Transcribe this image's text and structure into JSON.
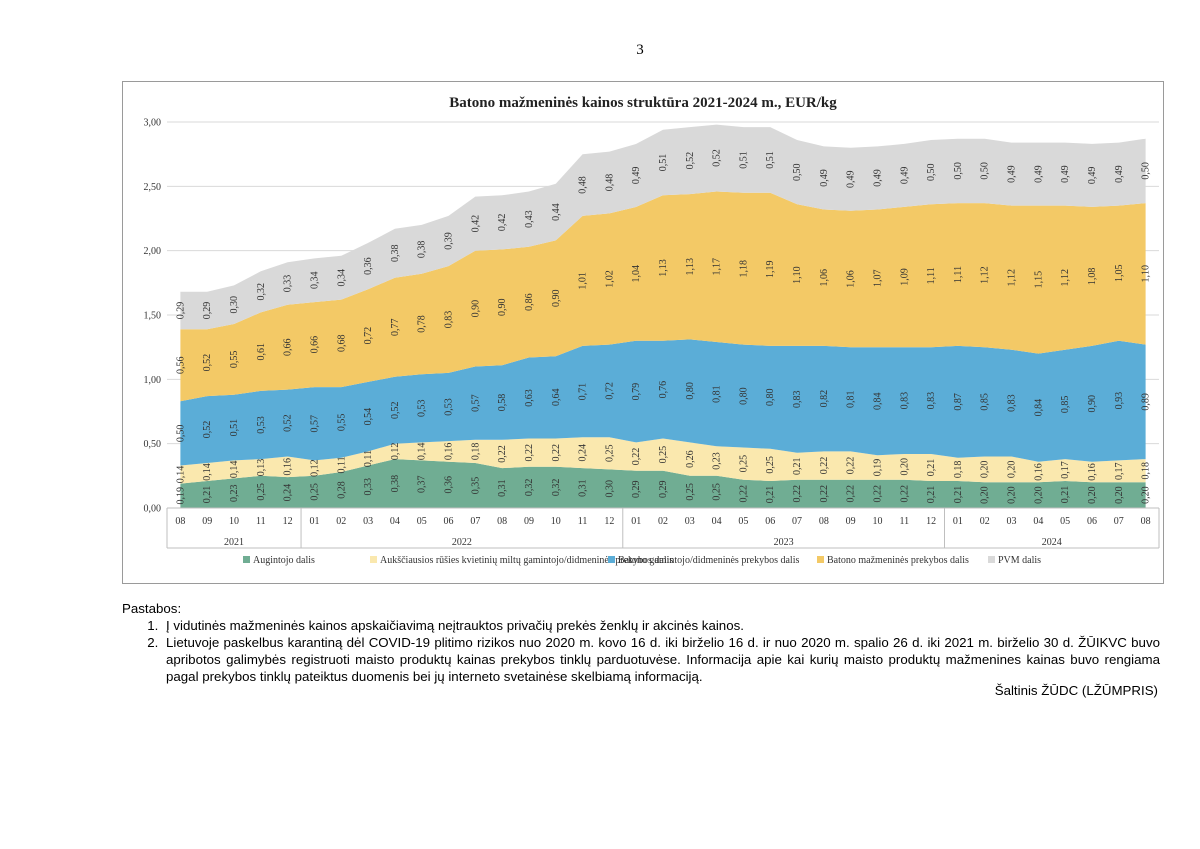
{
  "page": {
    "number": "3"
  },
  "chart_data": {
    "type": "area",
    "stacked": true,
    "title": "Batono mažmeninės  kainos struktūra 2021-2024 m., EUR/kg",
    "ylim": [
      0,
      3
    ],
    "yticks": [
      "0,00",
      "0,50",
      "1,00",
      "1,50",
      "2,00",
      "2,50",
      "3,00"
    ],
    "categories": [
      "08",
      "09",
      "10",
      "11",
      "12",
      "01",
      "02",
      "03",
      "04",
      "05",
      "06",
      "07",
      "08",
      "09",
      "10",
      "11",
      "12",
      "01",
      "02",
      "03",
      "04",
      "05",
      "06",
      "07",
      "08",
      "09",
      "10",
      "11",
      "12",
      "01",
      "02",
      "03",
      "04",
      "05",
      "06",
      "07",
      "08"
    ],
    "years": [
      {
        "label": "2021",
        "count": 5
      },
      {
        "label": "2022",
        "count": 12
      },
      {
        "label": "2023",
        "count": 12
      },
      {
        "label": "2024",
        "count": 8
      }
    ],
    "series": [
      {
        "name": "Augintojo dalis",
        "color": "#70ad93",
        "values": [
          0.19,
          0.21,
          0.23,
          0.25,
          0.24,
          0.25,
          0.28,
          0.33,
          0.38,
          0.37,
          0.36,
          0.35,
          0.31,
          0.32,
          0.32,
          0.31,
          0.3,
          0.29,
          0.29,
          0.25,
          0.25,
          0.22,
          0.21,
          0.22,
          0.22,
          0.22,
          0.22,
          0.22,
          0.21,
          0.21,
          0.2,
          0.2,
          0.2,
          0.21,
          0.2,
          0.2,
          0.2
        ],
        "labels": [
          "0,19",
          "0,21",
          "0,23",
          "0,25",
          "0,24",
          "0,25",
          "0,28",
          "0,33",
          "0,38",
          "0,37",
          "0,36",
          "0,35",
          "0,31",
          "0,32",
          "0,32",
          "0,31",
          "0,30",
          "0,29",
          "0,29",
          "0,25",
          "0,25",
          "0,22",
          "0,21",
          "0,22",
          "0,22",
          "0,22",
          "0,22",
          "0,22",
          "0,21",
          "0,21",
          "0,20",
          "0,20",
          "0,20",
          "0,21",
          "0,20",
          "0,20",
          "0,20"
        ]
      },
      {
        "name": "Aukščiausios rūšies kvietinių miltų gamintojo/didmeninės prekybos dalis",
        "color": "#fae8ae",
        "values": [
          0.14,
          0.14,
          0.14,
          0.13,
          0.16,
          0.12,
          0.11,
          0.11,
          0.12,
          0.14,
          0.16,
          0.18,
          0.22,
          0.22,
          0.22,
          0.24,
          0.25,
          0.22,
          0.25,
          0.26,
          0.23,
          0.25,
          0.25,
          0.21,
          0.22,
          0.22,
          0.19,
          0.2,
          0.21,
          0.18,
          0.2,
          0.2,
          0.16,
          0.17,
          0.16,
          0.17,
          0.18
        ],
        "labels": [
          "0,14",
          "0,14",
          "0,14",
          "0,13",
          "0,16",
          "0,12",
          "0,11",
          "0,11",
          "0,12",
          "0,14",
          "0,16",
          "0,18",
          "0,22",
          "0,22",
          "0,22",
          "0,24",
          "0,25",
          "0,22",
          "0,25",
          "0,26",
          "0,23",
          "0,25",
          "0,25",
          "0,21",
          "0,22",
          "0,22",
          "0,19",
          "0,20",
          "0,21",
          "0,18",
          "0,20",
          "0,20",
          "0,16",
          "0,17",
          "0,16",
          "0,17",
          "0,18"
        ]
      },
      {
        "name": "Batono gamintojo/didmeninės prekybos dalis",
        "color": "#5badd7",
        "values": [
          0.5,
          0.52,
          0.51,
          0.53,
          0.52,
          0.57,
          0.55,
          0.54,
          0.52,
          0.53,
          0.53,
          0.57,
          0.58,
          0.63,
          0.64,
          0.71,
          0.72,
          0.79,
          0.76,
          0.8,
          0.81,
          0.8,
          0.8,
          0.83,
          0.82,
          0.81,
          0.84,
          0.83,
          0.83,
          0.87,
          0.85,
          0.83,
          0.84,
          0.85,
          0.9,
          0.93,
          0.89
        ],
        "labels": [
          "0,50",
          "0,52",
          "0,51",
          "0,53",
          "0,52",
          "0,57",
          "0,55",
          "0,54",
          "0,52",
          "0,53",
          "0,53",
          "0,57",
          "0,58",
          "0,63",
          "0,64",
          "0,71",
          "0,72",
          "0,79",
          "0,76",
          "0,80",
          "0,81",
          "0,80",
          "0,80",
          "0,83",
          "0,82",
          "0,81",
          "0,84",
          "0,83",
          "0,83",
          "0,87",
          "0,85",
          "0,83",
          "0,84",
          "0,85",
          "0,90",
          "0,93",
          "0,89"
        ]
      },
      {
        "name": "Batono mažmeninės prekybos dalis",
        "color": "#f3c966",
        "values": [
          0.56,
          0.52,
          0.55,
          0.61,
          0.66,
          0.66,
          0.68,
          0.72,
          0.77,
          0.78,
          0.83,
          0.9,
          0.9,
          0.86,
          0.9,
          1.01,
          1.02,
          1.04,
          1.13,
          1.13,
          1.17,
          1.18,
          1.19,
          1.1,
          1.06,
          1.06,
          1.07,
          1.09,
          1.11,
          1.11,
          1.12,
          1.12,
          1.15,
          1.12,
          1.08,
          1.05,
          1.1
        ],
        "labels": [
          "0,56",
          "0,52",
          "0,55",
          "0,61",
          "0,66",
          "0,66",
          "0,68",
          "0,72",
          "0,77",
          "0,78",
          "0,83",
          "0,90",
          "0,90",
          "0,86",
          "0,90",
          "1,01",
          "1,02",
          "1,04",
          "1,13",
          "1,13",
          "1,17",
          "1,18",
          "1,19",
          "1,10",
          "1,06",
          "1,06",
          "1,07",
          "1,09",
          "1,11",
          "1,11",
          "1,12",
          "1,12",
          "1,15",
          "1,12",
          "1,08",
          "1,05",
          "1,10"
        ]
      },
      {
        "name": "PVM dalis",
        "color": "#d9d9d9",
        "values": [
          0.29,
          0.29,
          0.3,
          0.32,
          0.33,
          0.34,
          0.34,
          0.36,
          0.38,
          0.38,
          0.39,
          0.42,
          0.42,
          0.43,
          0.44,
          0.48,
          0.48,
          0.49,
          0.51,
          0.52,
          0.52,
          0.51,
          0.51,
          0.5,
          0.49,
          0.49,
          0.49,
          0.49,
          0.5,
          0.5,
          0.5,
          0.49,
          0.49,
          0.49,
          0.49,
          0.49,
          0.5
        ],
        "labels": [
          "0,29",
          "0,29",
          "0,30",
          "0,32",
          "0,33",
          "0,34",
          "0,34",
          "0,36",
          "0,38",
          "0,38",
          "0,39",
          "0,42",
          "0,42",
          "0,43",
          "0,44",
          "0,48",
          "0,48",
          "0,49",
          "0,51",
          "0,52",
          "0,52",
          "0,51",
          "0,51",
          "0,50",
          "0,49",
          "0,49",
          "0,49",
          "0,49",
          "0,50",
          "0,50",
          "0,50",
          "0,49",
          "0,49",
          "0,49",
          "0,49",
          "0,49",
          "0,50"
        ]
      }
    ]
  },
  "notes": {
    "title": "Pastabos:",
    "items": [
      "Į vidutinės mažmeninės kainos apskaičiavimą neįtrauktos privačių prekės ženklų ir akcinės kainos.",
      "Lietuvoje paskelbus karantiną dėl COVID-19 plitimo rizikos nuo 2020 m. kovo 16 d. iki birželio 16 d. ir nuo 2020 m. spalio 26 d. iki 2021 m. birželio 30 d. ŽŪIKVC buvo apribotos galimybės registruoti maisto produktų kainas prekybos tinklų parduotuvėse. Informacija apie kai kurių maisto produktų mažmenines kainas buvo rengiama pagal prekybos tinklų pateiktus duomenis bei jų interneto svetainėse skelbiamą informaciją."
    ]
  },
  "source": "Šaltinis ŽŪDC (LŽŪMPRIS)"
}
